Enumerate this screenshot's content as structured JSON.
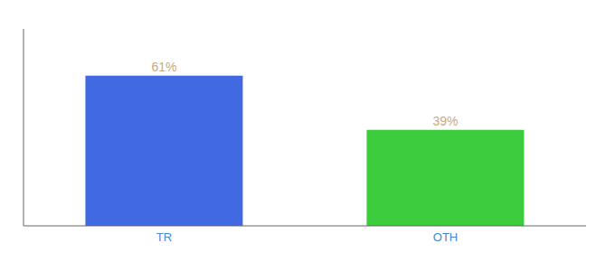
{
  "chart_data": {
    "type": "bar",
    "categories": [
      "TR",
      "OTH"
    ],
    "values": [
      61,
      39
    ],
    "value_labels": [
      "61%",
      "39%"
    ],
    "colors": [
      "#4169e1",
      "#3dcc3d"
    ],
    "ylim": [
      0,
      80
    ],
    "data_labels": true,
    "tick_labels": "x",
    "grid": false
  }
}
